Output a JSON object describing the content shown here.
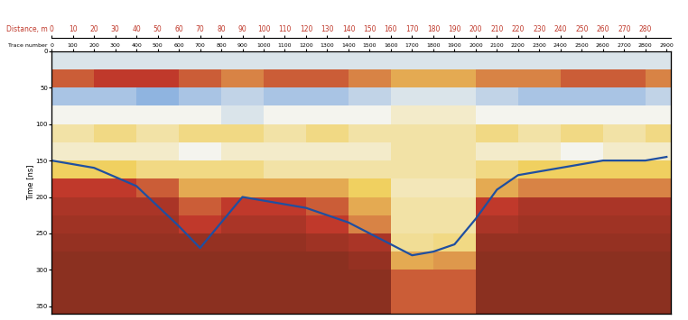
{
  "chart_data": {
    "type": "radargram",
    "x_label": "Distance, m",
    "x2_label": "Trace number",
    "y_label": "Time [ns]",
    "xlim": [
      0,
      292
    ],
    "xticks": [
      0,
      10,
      20,
      30,
      40,
      50,
      60,
      70,
      80,
      90,
      100,
      110,
      120,
      130,
      140,
      150,
      160,
      170,
      180,
      190,
      200,
      210,
      220,
      230,
      240,
      250,
      260,
      270,
      280
    ],
    "x2lim": [
      0,
      2920
    ],
    "x2ticks": [
      0,
      100,
      200,
      300,
      400,
      500,
      600,
      700,
      800,
      900,
      1000,
      1100,
      1200,
      1300,
      1400,
      1500,
      1600,
      1700,
      1800,
      1900,
      2000,
      2100,
      2200,
      2300,
      2400,
      2500,
      2600,
      2700,
      2800,
      2900
    ],
    "ylim": [
      360,
      0
    ],
    "yticks": [
      0,
      50,
      100,
      150,
      200,
      250,
      300,
      350
    ],
    "amplitude_range": [
      -1,
      1
    ],
    "x_edges": [
      0,
      20,
      40,
      60,
      80,
      100,
      120,
      140,
      160,
      180,
      200,
      220,
      240,
      260,
      280,
      300
    ],
    "y_edges": [
      0,
      25,
      50,
      75,
      100,
      125,
      150,
      175,
      200,
      225,
      250,
      275,
      300,
      325,
      350,
      375
    ],
    "cells": [
      [
        -0.3,
        -0.3,
        -0.3,
        -0.3,
        -0.3,
        -0.3,
        -0.3,
        -0.3,
        -0.3,
        -0.3,
        -0.3,
        -0.3,
        -0.3,
        -0.3,
        -0.3
      ],
      [
        0.5,
        0.6,
        0.6,
        0.5,
        0.4,
        0.5,
        0.5,
        0.4,
        0.3,
        0.3,
        0.4,
        0.4,
        0.5,
        0.5,
        0.4
      ],
      [
        -0.5,
        -0.5,
        -0.6,
        -0.5,
        -0.4,
        -0.5,
        -0.5,
        -0.4,
        -0.3,
        -0.3,
        -0.4,
        -0.5,
        -0.5,
        -0.5,
        -0.4
      ],
      [
        -0.2,
        -0.2,
        -0.2,
        -0.2,
        -0.3,
        -0.2,
        -0.2,
        -0.2,
        -0.1,
        -0.1,
        -0.2,
        -0.2,
        -0.2,
        -0.2,
        -0.2
      ],
      [
        0.0,
        0.1,
        0.0,
        0.1,
        0.1,
        0.0,
        0.1,
        0.0,
        0.0,
        0.0,
        0.1,
        0.0,
        0.1,
        0.0,
        0.1
      ],
      [
        -0.1,
        -0.1,
        -0.1,
        -0.2,
        -0.1,
        -0.1,
        -0.1,
        -0.1,
        0.0,
        0.0,
        -0.1,
        -0.1,
        -0.2,
        -0.1,
        -0.1
      ],
      [
        0.2,
        0.2,
        0.1,
        0.1,
        0.1,
        0.0,
        0.0,
        0.0,
        0.0,
        0.0,
        0.1,
        0.2,
        0.2,
        0.2,
        0.2
      ],
      [
        0.6,
        0.6,
        0.5,
        0.3,
        0.3,
        0.3,
        0.3,
        0.2,
        -0.05,
        -0.05,
        0.3,
        0.4,
        0.4,
        0.4,
        0.4
      ],
      [
        0.7,
        0.7,
        0.7,
        0.5,
        0.6,
        0.6,
        0.5,
        0.3,
        0.0,
        0.0,
        0.6,
        0.7,
        0.7,
        0.7,
        0.7
      ],
      [
        0.75,
        0.75,
        0.75,
        0.6,
        0.7,
        0.7,
        0.6,
        0.4,
        0.0,
        0.0,
        0.7,
        0.75,
        0.75,
        0.75,
        0.75
      ],
      [
        0.8,
        0.8,
        0.8,
        0.8,
        0.8,
        0.8,
        0.75,
        0.7,
        0.05,
        0.1,
        0.8,
        0.8,
        0.8,
        0.8,
        0.8
      ],
      [
        0.85,
        0.85,
        0.85,
        0.85,
        0.85,
        0.85,
        0.85,
        0.8,
        0.3,
        0.35,
        0.85,
        0.85,
        0.85,
        0.85,
        0.85
      ],
      [
        0.85,
        0.85,
        0.85,
        0.85,
        0.85,
        0.85,
        0.85,
        0.85,
        0.5,
        0.5,
        0.85,
        0.85,
        0.85,
        0.85,
        0.85
      ],
      [
        0.85,
        0.85,
        0.85,
        0.85,
        0.85,
        0.85,
        0.85,
        0.85,
        0.5,
        0.5,
        0.85,
        0.85,
        0.85,
        0.85,
        0.85
      ],
      [
        0.85,
        0.85,
        0.85,
        0.85,
        0.85,
        0.85,
        0.85,
        0.85,
        0.5,
        0.5,
        0.85,
        0.85,
        0.85,
        0.85,
        0.85
      ]
    ],
    "series": [
      {
        "color": "#1f4fa0",
        "line_style": "solid",
        "x": [
          0,
          20,
          40,
          60,
          70,
          80,
          90,
          100,
          120,
          140,
          150,
          160,
          170,
          180,
          190,
          200,
          210,
          220,
          240,
          260,
          280,
          290
        ],
        "values": [
          150,
          160,
          185,
          240,
          270,
          235,
          200,
          205,
          215,
          235,
          250,
          265,
          280,
          275,
          265,
          230,
          190,
          170,
          160,
          150,
          150,
          145
        ]
      }
    ]
  }
}
